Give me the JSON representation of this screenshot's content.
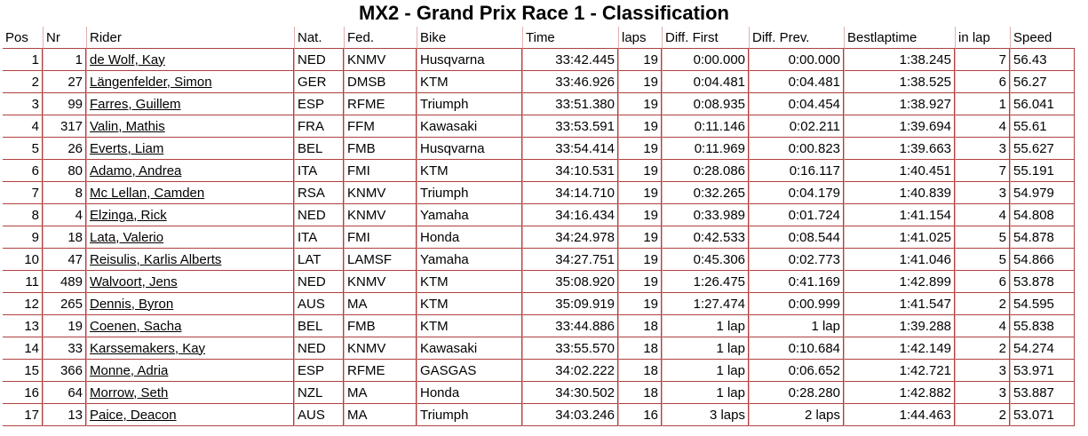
{
  "title": "MX2 - Grand Prix Race 1 - Classification",
  "columns": [
    "Pos",
    "Nr",
    "Rider",
    "Nat.",
    "Fed.",
    "Bike",
    "Time",
    "laps",
    "Diff. First",
    "Diff. Prev.",
    "Bestlaptime",
    "in lap",
    "Speed"
  ],
  "rows": [
    [
      "1",
      "1",
      "de Wolf, Kay",
      "NED",
      "KNMV",
      "Husqvarna",
      "33:42.445",
      "19",
      "0:00.000",
      "0:00.000",
      "1:38.245",
      "7",
      "56.43"
    ],
    [
      "2",
      "27",
      "Längenfelder, Simon",
      "GER",
      "DMSB",
      "KTM",
      "33:46.926",
      "19",
      "0:04.481",
      "0:04.481",
      "1:38.525",
      "6",
      "56.27"
    ],
    [
      "3",
      "99",
      "Farres, Guillem",
      "ESP",
      "RFME",
      "Triumph",
      "33:51.380",
      "19",
      "0:08.935",
      "0:04.454",
      "1:38.927",
      "1",
      "56.041"
    ],
    [
      "4",
      "317",
      "Valin, Mathis",
      "FRA",
      "FFM",
      "Kawasaki",
      "33:53.591",
      "19",
      "0:11.146",
      "0:02.211",
      "1:39.694",
      "4",
      "55.61"
    ],
    [
      "5",
      "26",
      "Everts, Liam",
      "BEL",
      "FMB",
      "Husqvarna",
      "33:54.414",
      "19",
      "0:11.969",
      "0:00.823",
      "1:39.663",
      "3",
      "55.627"
    ],
    [
      "6",
      "80",
      "Adamo, Andrea",
      "ITA",
      "FMI",
      "KTM",
      "34:10.531",
      "19",
      "0:28.086",
      "0:16.117",
      "1:40.451",
      "7",
      "55.191"
    ],
    [
      "7",
      "8",
      "Mc Lellan, Camden",
      "RSA",
      "KNMV",
      "Triumph",
      "34:14.710",
      "19",
      "0:32.265",
      "0:04.179",
      "1:40.839",
      "3",
      "54.979"
    ],
    [
      "8",
      "4",
      "Elzinga, Rick",
      "NED",
      "KNMV",
      "Yamaha",
      "34:16.434",
      "19",
      "0:33.989",
      "0:01.724",
      "1:41.154",
      "4",
      "54.808"
    ],
    [
      "9",
      "18",
      "Lata, Valerio",
      "ITA",
      "FMI",
      "Honda",
      "34:24.978",
      "19",
      "0:42.533",
      "0:08.544",
      "1:41.025",
      "5",
      "54.878"
    ],
    [
      "10",
      "47",
      "Reisulis, Karlis Alberts",
      "LAT",
      "LAMSF",
      "Yamaha",
      "34:27.751",
      "19",
      "0:45.306",
      "0:02.773",
      "1:41.046",
      "5",
      "54.866"
    ],
    [
      "11",
      "489",
      "Walvoort, Jens",
      "NED",
      "KNMV",
      "KTM",
      "35:08.920",
      "19",
      "1:26.475",
      "0:41.169",
      "1:42.899",
      "6",
      "53.878"
    ],
    [
      "12",
      "265",
      "Dennis, Byron",
      "AUS",
      "MA",
      "KTM",
      "35:09.919",
      "19",
      "1:27.474",
      "0:00.999",
      "1:41.547",
      "2",
      "54.595"
    ],
    [
      "13",
      "19",
      "Coenen, Sacha",
      "BEL",
      "FMB",
      "KTM",
      "33:44.886",
      "18",
      "1 lap",
      "1 lap",
      "1:39.288",
      "4",
      "55.838"
    ],
    [
      "14",
      "33",
      "Karssemakers, Kay",
      "NED",
      "KNMV",
      "Kawasaki",
      "33:55.570",
      "18",
      "1 lap",
      "0:10.684",
      "1:42.149",
      "2",
      "54.274"
    ],
    [
      "15",
      "366",
      "Monne, Adria",
      "ESP",
      "RFME",
      "GASGAS",
      "34:02.222",
      "18",
      "1 lap",
      "0:06.652",
      "1:42.721",
      "3",
      "53.971"
    ],
    [
      "16",
      "64",
      "Morrow, Seth",
      "NZL",
      "MA",
      "Honda",
      "34:30.502",
      "18",
      "1 lap",
      "0:28.280",
      "1:42.882",
      "3",
      "53.887"
    ],
    [
      "17",
      "13",
      "Paice, Deacon",
      "AUS",
      "MA",
      "Triumph",
      "34:03.246",
      "16",
      "3 laps",
      "2 laps",
      "1:44.463",
      "2",
      "53.071"
    ]
  ]
}
